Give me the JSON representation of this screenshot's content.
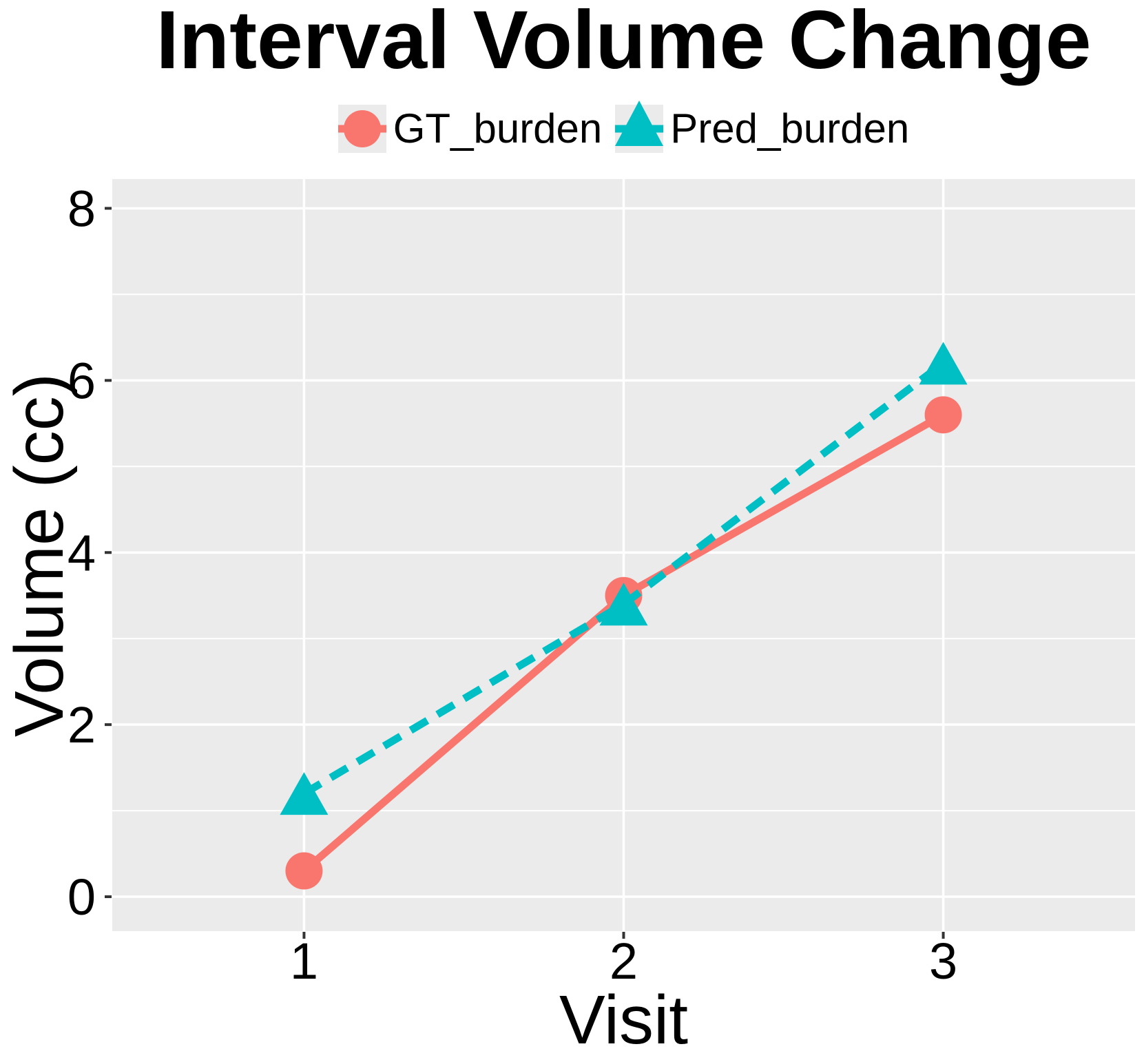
{
  "chart_data": {
    "type": "line",
    "title": "Interval Volume Change",
    "xlabel": "Visit",
    "ylabel": "Volume (cc)",
    "categories": [
      1,
      2,
      3
    ],
    "series": [
      {
        "name": "GT_burden",
        "color": "#F8766D",
        "marker": "circle",
        "line": "solid",
        "values": [
          0.3,
          3.5,
          5.6
        ]
      },
      {
        "name": "Pred_burden",
        "color": "#00BFC4",
        "marker": "triangle",
        "line": "dashed",
        "values": [
          1.2,
          3.4,
          6.2
        ]
      }
    ],
    "xlim": [
      0.4,
      3.6
    ],
    "ylim": [
      -0.4,
      8.34
    ],
    "xticks": [
      "1",
      "2",
      "3"
    ],
    "xtick_positions": [
      1,
      2,
      3
    ],
    "yticks": [
      "0",
      "2",
      "4",
      "6",
      "8"
    ],
    "ytick_positions": [
      0,
      2,
      4,
      6,
      8
    ],
    "ytick_minor_positions": [
      1,
      3,
      5,
      7
    ],
    "grid": true,
    "legend_position": "top-center",
    "colors": {
      "panel_bg": "#EBEBEB",
      "grid_major": "#FFFFFF",
      "grid_minor": "#FFFFFF",
      "tick_mark": "#333333",
      "text": "#000000",
      "legend_key_bg": "#EBEBEB"
    }
  }
}
